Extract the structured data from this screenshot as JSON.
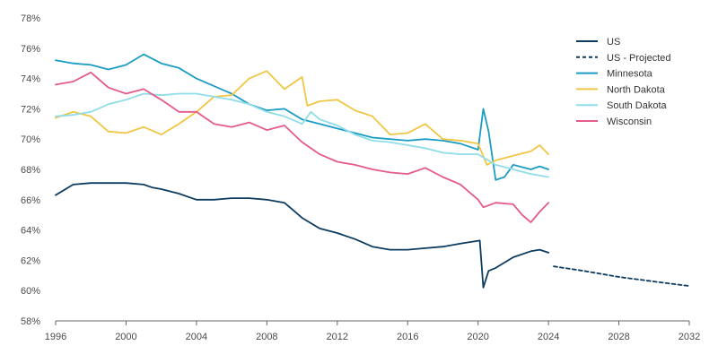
{
  "chart_data": {
    "type": "line",
    "title": "",
    "xlabel": "",
    "ylabel": "",
    "xlim": [
      1996,
      2032
    ],
    "ylim": [
      58,
      78
    ],
    "grid": false,
    "legend_position": "top-right",
    "x_ticks": [
      1996,
      2000,
      2004,
      2008,
      2012,
      2016,
      2020,
      2024,
      2028,
      2032
    ],
    "x_tick_labels": [
      "1996",
      "2000",
      "2004",
      "2008",
      "2012",
      "2016",
      "2020",
      "2024",
      "2028",
      "2032"
    ],
    "y_ticks": [
      58,
      60,
      62,
      64,
      66,
      68,
      70,
      72,
      74,
      76,
      78
    ],
    "y_tick_labels": [
      "58%",
      "60%",
      "62%",
      "64%",
      "66%",
      "68%",
      "70%",
      "72%",
      "74%",
      "76%",
      "78%"
    ],
    "series": [
      {
        "name": "US",
        "color": "#0d3c61",
        "dash": "solid",
        "points": [
          [
            1996,
            66.3
          ],
          [
            1997,
            67.0
          ],
          [
            1998,
            67.1
          ],
          [
            1999,
            67.1
          ],
          [
            2000,
            67.1
          ],
          [
            2001,
            67.0
          ],
          [
            2001.5,
            66.8
          ],
          [
            2002,
            66.7
          ],
          [
            2003,
            66.4
          ],
          [
            2004,
            66.0
          ],
          [
            2005,
            66.0
          ],
          [
            2006,
            66.1
          ],
          [
            2007,
            66.1
          ],
          [
            2008,
            66.0
          ],
          [
            2009,
            65.8
          ],
          [
            2009.5,
            65.3
          ],
          [
            2010,
            64.8
          ],
          [
            2011,
            64.1
          ],
          [
            2012,
            63.8
          ],
          [
            2013,
            63.4
          ],
          [
            2014,
            62.9
          ],
          [
            2015,
            62.7
          ],
          [
            2016,
            62.7
          ],
          [
            2017,
            62.8
          ],
          [
            2018,
            62.9
          ],
          [
            2019,
            63.1
          ],
          [
            2020.1,
            63.3
          ],
          [
            2020.3,
            60.2
          ],
          [
            2020.6,
            61.3
          ],
          [
            2021,
            61.5
          ],
          [
            2022,
            62.2
          ],
          [
            2023,
            62.6
          ],
          [
            2023.5,
            62.7
          ],
          [
            2024,
            62.5
          ]
        ]
      },
      {
        "name": "US - Projected",
        "color": "#0d3c61",
        "dash": "dashed",
        "points": [
          [
            2024.3,
            61.6
          ],
          [
            2026,
            61.3
          ],
          [
            2028,
            60.9
          ],
          [
            2030,
            60.6
          ],
          [
            2032,
            60.3
          ]
        ]
      },
      {
        "name": "Minnesota",
        "color": "#1b9cc4",
        "dash": "solid",
        "points": [
          [
            1996,
            75.2
          ],
          [
            1997,
            75.0
          ],
          [
            1998,
            74.9
          ],
          [
            1999,
            74.6
          ],
          [
            2000,
            74.9
          ],
          [
            2001,
            75.6
          ],
          [
            2002,
            75.0
          ],
          [
            2003,
            74.7
          ],
          [
            2004,
            74.0
          ],
          [
            2005,
            73.5
          ],
          [
            2006,
            73.0
          ],
          [
            2007,
            72.3
          ],
          [
            2008,
            71.9
          ],
          [
            2009,
            72.0
          ],
          [
            2010,
            71.3
          ],
          [
            2011,
            71.0
          ],
          [
            2012,
            70.7
          ],
          [
            2013,
            70.4
          ],
          [
            2014,
            70.1
          ],
          [
            2015,
            70.0
          ],
          [
            2016,
            69.9
          ],
          [
            2017,
            70.0
          ],
          [
            2018,
            69.9
          ],
          [
            2019,
            69.7
          ],
          [
            2020,
            69.3
          ],
          [
            2020.3,
            72.0
          ],
          [
            2020.6,
            70.5
          ],
          [
            2021,
            67.3
          ],
          [
            2021.5,
            67.5
          ],
          [
            2022,
            68.3
          ],
          [
            2023,
            68.0
          ],
          [
            2023.5,
            68.2
          ],
          [
            2024,
            68.0
          ]
        ]
      },
      {
        "name": "North Dakota",
        "color": "#f1c644",
        "dash": "solid",
        "points": [
          [
            1996,
            71.4
          ],
          [
            1997,
            71.8
          ],
          [
            1998,
            71.5
          ],
          [
            1999,
            70.5
          ],
          [
            2000,
            70.4
          ],
          [
            2001,
            70.8
          ],
          [
            2002,
            70.3
          ],
          [
            2003,
            71.0
          ],
          [
            2004,
            71.8
          ],
          [
            2005,
            72.8
          ],
          [
            2006,
            72.9
          ],
          [
            2007,
            74.0
          ],
          [
            2008,
            74.5
          ],
          [
            2009,
            73.3
          ],
          [
            2010,
            74.1
          ],
          [
            2010.3,
            72.2
          ],
          [
            2011,
            72.5
          ],
          [
            2012,
            72.6
          ],
          [
            2013,
            71.9
          ],
          [
            2014,
            71.5
          ],
          [
            2015,
            70.3
          ],
          [
            2016,
            70.4
          ],
          [
            2017,
            71.0
          ],
          [
            2018,
            70.0
          ],
          [
            2019,
            69.9
          ],
          [
            2020,
            69.7
          ],
          [
            2020.5,
            68.3
          ],
          [
            2021,
            68.6
          ],
          [
            2022,
            68.9
          ],
          [
            2023,
            69.2
          ],
          [
            2023.5,
            69.6
          ],
          [
            2024,
            69.0
          ]
        ]
      },
      {
        "name": "South Dakota",
        "color": "#8fdde8",
        "dash": "solid",
        "points": [
          [
            1996,
            71.5
          ],
          [
            1997,
            71.6
          ],
          [
            1998,
            71.8
          ],
          [
            1999,
            72.3
          ],
          [
            2000,
            72.6
          ],
          [
            2001,
            73.0
          ],
          [
            2002,
            72.9
          ],
          [
            2003,
            73.0
          ],
          [
            2004,
            73.0
          ],
          [
            2005,
            72.8
          ],
          [
            2006,
            72.6
          ],
          [
            2007,
            72.3
          ],
          [
            2008,
            71.8
          ],
          [
            2009,
            71.5
          ],
          [
            2010,
            71.0
          ],
          [
            2010.5,
            71.8
          ],
          [
            2011,
            71.3
          ],
          [
            2012,
            70.9
          ],
          [
            2013,
            70.3
          ],
          [
            2014,
            69.9
          ],
          [
            2015,
            69.8
          ],
          [
            2016,
            69.6
          ],
          [
            2017,
            69.4
          ],
          [
            2018,
            69.1
          ],
          [
            2019,
            69.0
          ],
          [
            2020,
            69.0
          ],
          [
            2021,
            68.3
          ],
          [
            2022,
            68.0
          ],
          [
            2023,
            67.7
          ],
          [
            2024,
            67.5
          ]
        ]
      },
      {
        "name": "Wisconsin",
        "color": "#e45b86",
        "dash": "solid",
        "points": [
          [
            1996,
            73.6
          ],
          [
            1997,
            73.8
          ],
          [
            1998,
            74.4
          ],
          [
            1999,
            73.4
          ],
          [
            2000,
            73.0
          ],
          [
            2001,
            73.3
          ],
          [
            2002,
            72.6
          ],
          [
            2003,
            71.8
          ],
          [
            2004,
            71.8
          ],
          [
            2005,
            71.0
          ],
          [
            2006,
            70.8
          ],
          [
            2007,
            71.1
          ],
          [
            2008,
            70.6
          ],
          [
            2009,
            70.9
          ],
          [
            2010,
            69.8
          ],
          [
            2011,
            69.0
          ],
          [
            2012,
            68.5
          ],
          [
            2013,
            68.3
          ],
          [
            2014,
            68.0
          ],
          [
            2015,
            67.8
          ],
          [
            2016,
            67.7
          ],
          [
            2017,
            68.1
          ],
          [
            2018,
            67.5
          ],
          [
            2019,
            67.0
          ],
          [
            2020,
            66.0
          ],
          [
            2020.3,
            65.5
          ],
          [
            2021,
            65.8
          ],
          [
            2022,
            65.7
          ],
          [
            2022.5,
            65.0
          ],
          [
            2023,
            64.5
          ],
          [
            2023.5,
            65.2
          ],
          [
            2024,
            65.8
          ]
        ]
      }
    ]
  }
}
